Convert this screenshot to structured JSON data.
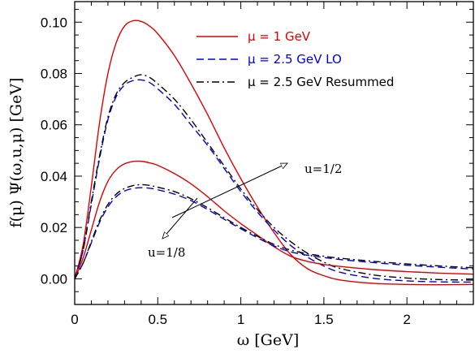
{
  "chart_data": {
    "type": "line",
    "xlabel": "ω [GeV]",
    "ylabel": "f(μ) Ψ(ω,u,μ) [GeV]",
    "xlim": [
      0,
      2.4
    ],
    "ylim": [
      -0.01,
      0.108
    ],
    "x_ticks": [
      "0",
      "0.5",
      "1",
      "1.5",
      "2"
    ],
    "y_ticks": [
      "0.00",
      "0.02",
      "0.04",
      "0.06",
      "0.08",
      "0.10"
    ],
    "legend_position": "top-right",
    "legend": [
      {
        "label": "μ = 1 GeV",
        "color": "#e00000",
        "style": "solid"
      },
      {
        "label": "μ = 2.5 GeV LO",
        "color": "#0000dd",
        "style": "dashed"
      },
      {
        "label": "μ = 2.5 GeV Resummed",
        "color": "#000000",
        "style": "dashdot"
      }
    ],
    "annotations": [
      "u=1/2",
      "u=1/8"
    ],
    "series": [
      {
        "group": "u=1/2",
        "legend_index": 0,
        "color": "#e00000",
        "style": "solid",
        "x": [
          0,
          0.05,
          0.1,
          0.15,
          0.2,
          0.25,
          0.3,
          0.35,
          0.4,
          0.45,
          0.5,
          0.6,
          0.7,
          0.8,
          0.9,
          1.0,
          1.1,
          1.2,
          1.3,
          1.4,
          1.5,
          1.6,
          1.8,
          2.0,
          2.2,
          2.4
        ],
        "y": [
          0.0,
          0.013,
          0.036,
          0.061,
          0.08,
          0.092,
          0.0985,
          0.1005,
          0.1003,
          0.0985,
          0.0955,
          0.087,
          0.076,
          0.064,
          0.051,
          0.039,
          0.028,
          0.018,
          0.0095,
          0.004,
          0.0012,
          -0.0005,
          -0.0018,
          -0.0022,
          -0.0023,
          -0.0022
        ]
      },
      {
        "group": "u=1/2",
        "legend_index": 1,
        "color": "#0000dd",
        "style": "dashed",
        "x": [
          0,
          0.05,
          0.1,
          0.15,
          0.2,
          0.25,
          0.3,
          0.35,
          0.4,
          0.45,
          0.5,
          0.6,
          0.7,
          0.8,
          0.9,
          1.0,
          1.1,
          1.2,
          1.3,
          1.4,
          1.5,
          1.6,
          1.8,
          2.0,
          2.2,
          2.4
        ],
        "y": [
          0.0,
          0.011,
          0.029,
          0.047,
          0.062,
          0.071,
          0.0755,
          0.0772,
          0.0775,
          0.0765,
          0.074,
          0.068,
          0.06,
          0.052,
          0.043,
          0.034,
          0.026,
          0.019,
          0.013,
          0.0085,
          0.005,
          0.0025,
          0.0002,
          -0.0008,
          -0.0012,
          -0.0013
        ]
      },
      {
        "group": "u=1/2",
        "legend_index": 2,
        "color": "#000000",
        "style": "dashdot",
        "x": [
          0,
          0.05,
          0.1,
          0.15,
          0.2,
          0.25,
          0.3,
          0.35,
          0.4,
          0.45,
          0.5,
          0.6,
          0.7,
          0.8,
          0.9,
          1.0,
          1.1,
          1.2,
          1.3,
          1.4,
          1.5,
          1.6,
          1.8,
          2.0,
          2.2,
          2.4
        ],
        "y": [
          0.0,
          0.011,
          0.03,
          0.048,
          0.063,
          0.072,
          0.0765,
          0.0785,
          0.0795,
          0.0785,
          0.076,
          0.07,
          0.062,
          0.053,
          0.044,
          0.035,
          0.027,
          0.02,
          0.0145,
          0.01,
          0.0065,
          0.004,
          0.0015,
          0.0003,
          -0.0003,
          -0.0005
        ]
      },
      {
        "group": "u=1/8",
        "legend_index": 0,
        "color": "#e00000",
        "style": "solid",
        "x": [
          0,
          0.05,
          0.1,
          0.15,
          0.2,
          0.25,
          0.3,
          0.35,
          0.4,
          0.45,
          0.5,
          0.6,
          0.7,
          0.8,
          0.9,
          1.0,
          1.1,
          1.2,
          1.3,
          1.4,
          1.5,
          1.6,
          1.8,
          2.0,
          2.2,
          2.4
        ],
        "y": [
          0.0,
          0.008,
          0.019,
          0.03,
          0.038,
          0.0425,
          0.0448,
          0.0457,
          0.0458,
          0.0452,
          0.0442,
          0.041,
          0.037,
          0.032,
          0.0265,
          0.0215,
          0.017,
          0.0125,
          0.0088,
          0.0068,
          0.0056,
          0.0048,
          0.0036,
          0.0028,
          0.0022,
          0.0018
        ]
      },
      {
        "group": "u=1/8",
        "legend_index": 1,
        "color": "#0000dd",
        "style": "dashed",
        "x": [
          0,
          0.05,
          0.1,
          0.15,
          0.2,
          0.25,
          0.3,
          0.35,
          0.4,
          0.45,
          0.5,
          0.6,
          0.7,
          0.8,
          0.9,
          1.0,
          1.1,
          1.2,
          1.3,
          1.4,
          1.5,
          1.6,
          1.8,
          2.0,
          2.2,
          2.4
        ],
        "y": [
          0.0,
          0.006,
          0.014,
          0.022,
          0.028,
          0.032,
          0.0342,
          0.0352,
          0.0355,
          0.0353,
          0.0347,
          0.033,
          0.0305,
          0.027,
          0.0232,
          0.0195,
          0.016,
          0.0128,
          0.0105,
          0.0092,
          0.0083,
          0.0075,
          0.0063,
          0.0053,
          0.0045,
          0.0038
        ]
      },
      {
        "group": "u=1/8",
        "legend_index": 2,
        "color": "#000000",
        "style": "dashdot",
        "x": [
          0,
          0.05,
          0.1,
          0.15,
          0.2,
          0.25,
          0.3,
          0.35,
          0.4,
          0.45,
          0.5,
          0.6,
          0.7,
          0.8,
          0.9,
          1.0,
          1.1,
          1.2,
          1.3,
          1.4,
          1.5,
          1.6,
          1.8,
          2.0,
          2.2,
          2.4
        ],
        "y": [
          0.0,
          0.006,
          0.0145,
          0.0228,
          0.029,
          0.033,
          0.0352,
          0.0363,
          0.0367,
          0.0364,
          0.0357,
          0.034,
          0.0312,
          0.0277,
          0.0238,
          0.02,
          0.0166,
          0.0134,
          0.0112,
          0.0098,
          0.0088,
          0.008,
          0.0068,
          0.0058,
          0.005,
          0.0043
        ]
      }
    ]
  }
}
